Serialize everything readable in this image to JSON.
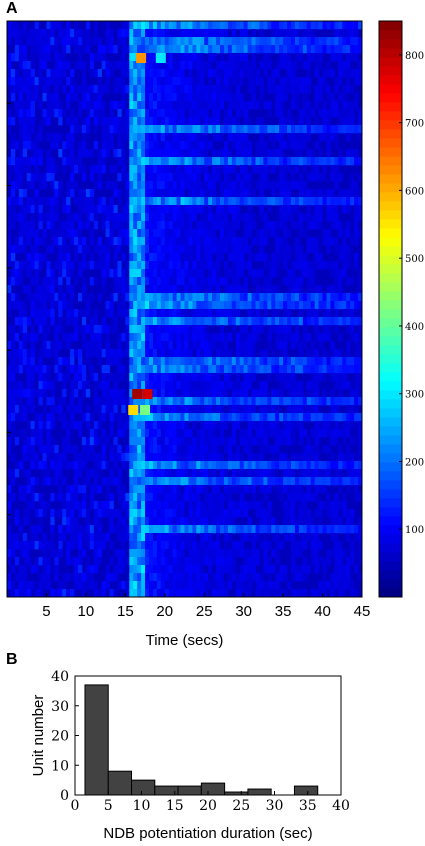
{
  "panels": {
    "a_label": "A",
    "b_label": "B"
  },
  "chart_data": [
    {
      "type": "heatmap",
      "xlabel": "Time (secs)",
      "x_ticks": [
        5,
        10,
        15,
        20,
        25,
        30,
        35,
        40,
        45
      ],
      "xlim": [
        0,
        45
      ],
      "colorbar": {
        "ticks": [
          100,
          200,
          300,
          400,
          500,
          600,
          700,
          800
        ],
        "range": [
          0,
          850
        ],
        "colormap": "jet"
      },
      "rows": 72,
      "stimulus_onset_sec": 15.5,
      "background_value": 50,
      "hotspots": [
        {
          "row": 4,
          "x": 17,
          "value": 620
        },
        {
          "row": 4,
          "x": 19.5,
          "value": 300
        },
        {
          "row": 46,
          "x": 16.5,
          "value": 820
        },
        {
          "row": 46,
          "x": 17.8,
          "value": 780
        },
        {
          "row": 48,
          "x": 16,
          "value": 560
        },
        {
          "row": 48,
          "x": 17.5,
          "value": 420
        }
      ]
    },
    {
      "type": "bar",
      "xlabel": "NDB potentiation duration (sec)",
      "ylabel": "Unit number",
      "x_ticks": [
        0,
        5,
        10,
        15,
        20,
        25,
        30,
        35,
        40
      ],
      "y_ticks": [
        0,
        10,
        20,
        30,
        40
      ],
      "xlim": [
        0,
        40
      ],
      "ylim": [
        0,
        40
      ],
      "bin_width": 3.5,
      "bin_starts": [
        1.5,
        5,
        8.5,
        12,
        15.5,
        19,
        22.5,
        26,
        29.5,
        33
      ],
      "values": [
        37,
        8,
        5,
        3,
        3,
        4,
        1,
        2,
        0,
        3
      ]
    }
  ]
}
